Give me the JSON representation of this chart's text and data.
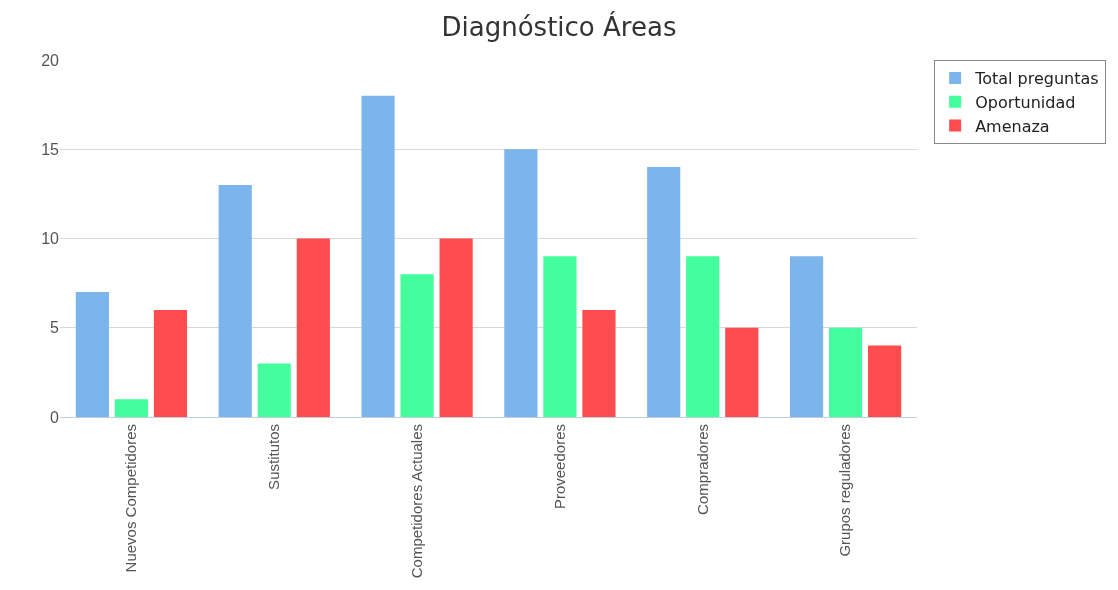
{
  "chart_data": {
    "type": "bar",
    "title": "Diagnóstico Áreas",
    "categories": [
      "Nuevos Competidores",
      "Sustitutos",
      "Competidores Actuales",
      "Proveedores",
      "Compradores",
      "Grupos reguladores"
    ],
    "series": [
      {
        "name": "Total preguntas",
        "color": "#7cb5ec",
        "values": [
          7,
          13,
          18,
          15,
          14,
          9
        ]
      },
      {
        "name": "Oportunidad",
        "color": "#44fe9e",
        "values": [
          1,
          3,
          8,
          9,
          9,
          5
        ]
      },
      {
        "name": "Amenaza",
        "color": "#ff4d4f",
        "values": [
          6,
          10,
          10,
          6,
          5,
          4
        ]
      }
    ],
    "ylim": [
      0,
      20
    ],
    "yticks": [
      0,
      5,
      10,
      15,
      20
    ],
    "grid": "y",
    "legend": "right"
  }
}
